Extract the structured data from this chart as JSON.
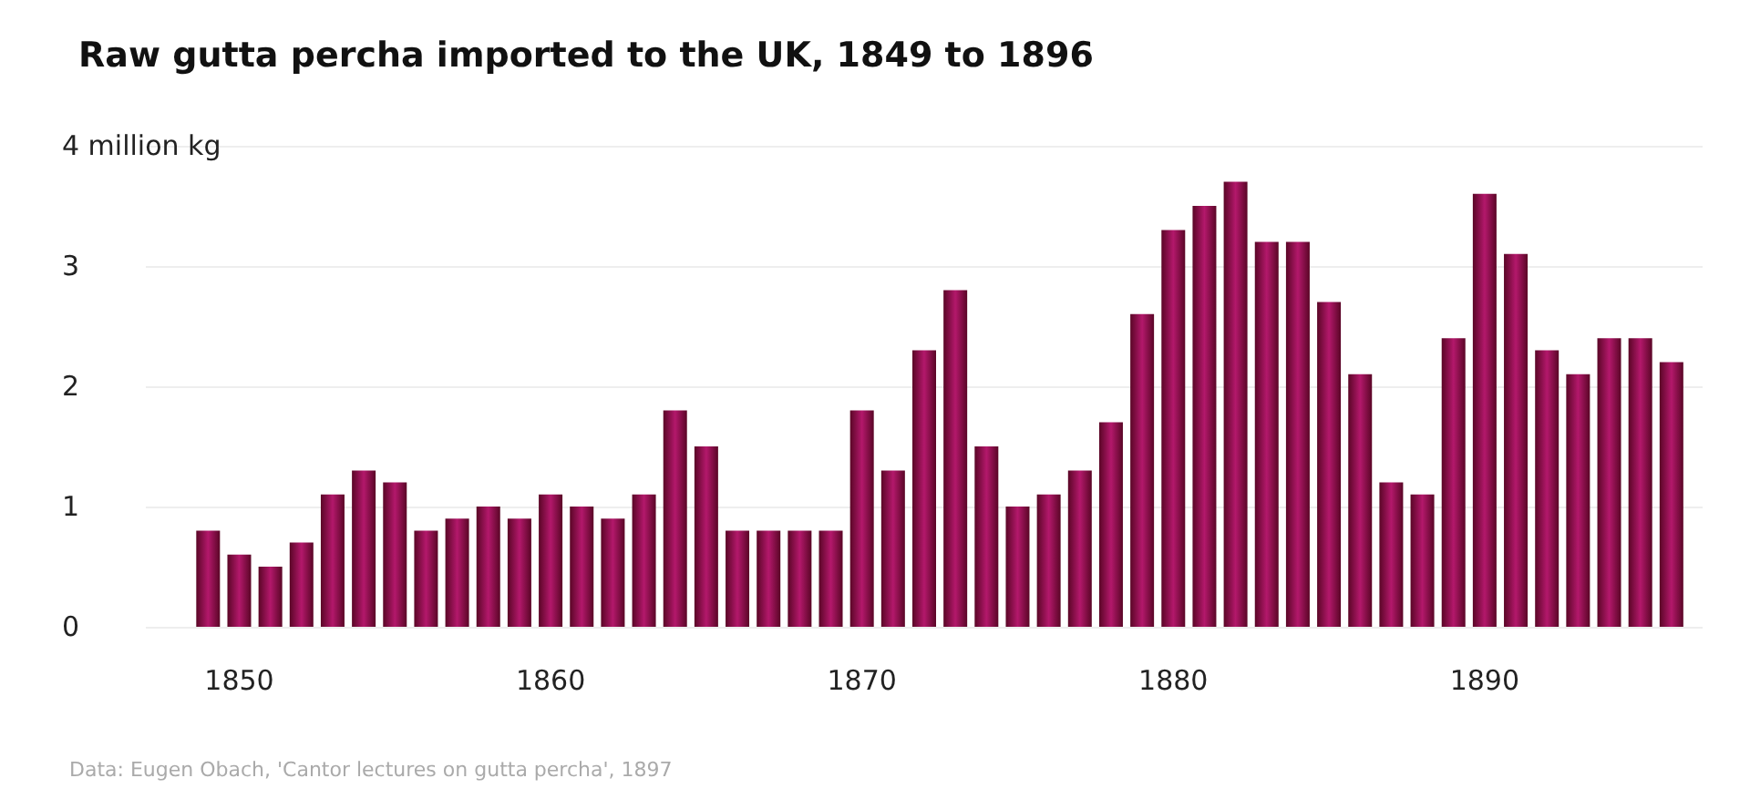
{
  "chart_data": {
    "type": "bar",
    "title": "Raw gutta percha imported to the UK, 1849 to 1896",
    "x": [
      1849,
      1850,
      1851,
      1852,
      1853,
      1854,
      1855,
      1856,
      1857,
      1858,
      1859,
      1860,
      1861,
      1862,
      1863,
      1864,
      1865,
      1866,
      1867,
      1868,
      1869,
      1870,
      1871,
      1872,
      1873,
      1874,
      1875,
      1876,
      1877,
      1878,
      1879,
      1880,
      1881,
      1882,
      1883,
      1884,
      1885,
      1886,
      1887,
      1888,
      1889,
      1890,
      1891,
      1892,
      1893,
      1894,
      1895,
      1896
    ],
    "values": [
      0.8,
      0.6,
      0.5,
      0.7,
      1.1,
      1.3,
      1.2,
      0.8,
      0.9,
      1.0,
      0.9,
      1.1,
      1.0,
      0.9,
      1.1,
      1.8,
      1.5,
      0.8,
      0.8,
      0.8,
      0.8,
      1.8,
      1.3,
      2.3,
      2.8,
      1.5,
      1.0,
      1.1,
      1.3,
      1.7,
      2.6,
      3.3,
      3.5,
      3.7,
      3.2,
      3.2,
      2.7,
      2.1,
      1.2,
      1.1,
      2.4,
      3.6,
      3.1,
      2.3,
      2.1,
      2.4,
      2.4,
      2.2
    ],
    "color": "#b3186b",
    "xlim": [
      1847,
      1897
    ],
    "xticks": [
      1850,
      1860,
      1870,
      1880,
      1890
    ],
    "ylim": [
      0,
      4
    ],
    "yticks": [
      0,
      1,
      2,
      3,
      {
        "value": 4,
        "label": "4 million kg"
      }
    ],
    "grid": "y",
    "annotations": [
      "Data: Eugen Obach, 'Cantor lectures on gutta percha', 1897"
    ]
  }
}
